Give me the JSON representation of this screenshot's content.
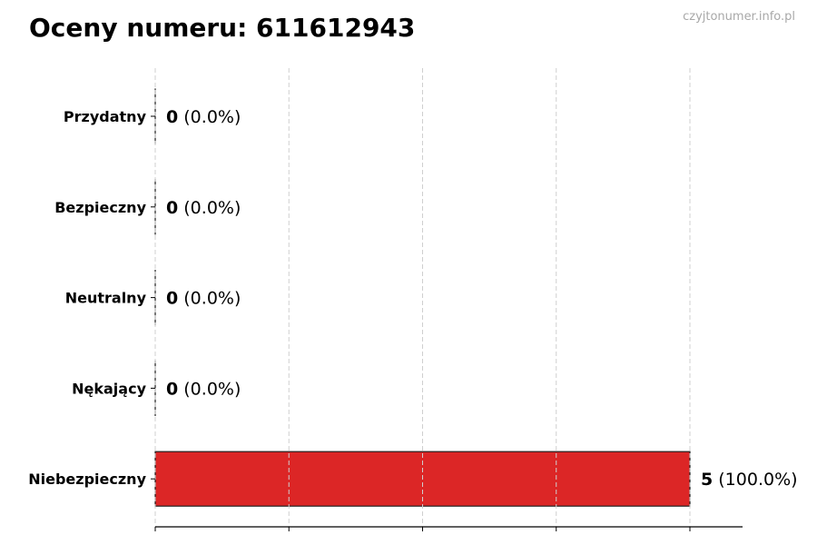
{
  "title": "Oceny numeru: 611612943",
  "watermark": "czyjtonumer.info.pl",
  "chart_data": {
    "type": "bar",
    "orientation": "horizontal",
    "title": "Oceny numeru: 611612943",
    "categories": [
      "Przydatny",
      "Bezpieczny",
      "Neutralny",
      "Nękający",
      "Niebezpieczny"
    ],
    "values": [
      0,
      0,
      0,
      0,
      5
    ],
    "labels": [
      {
        "count": "0",
        "pct": "(0.0%)"
      },
      {
        "count": "0",
        "pct": "(0.0%)"
      },
      {
        "count": "0",
        "pct": "(0.0%)"
      },
      {
        "count": "0",
        "pct": "(0.0%)"
      },
      {
        "count": "5",
        "pct": "(100.0%)"
      }
    ],
    "colors": [
      "#dc2626",
      "#dc2626",
      "#dc2626",
      "#dc2626",
      "#dc2626"
    ],
    "xlim": [
      0,
      5.5
    ],
    "xticks": [
      0,
      1.25,
      2.5,
      3.75,
      5
    ],
    "grid": "vertical dashed",
    "xlabel": "",
    "ylabel": ""
  }
}
